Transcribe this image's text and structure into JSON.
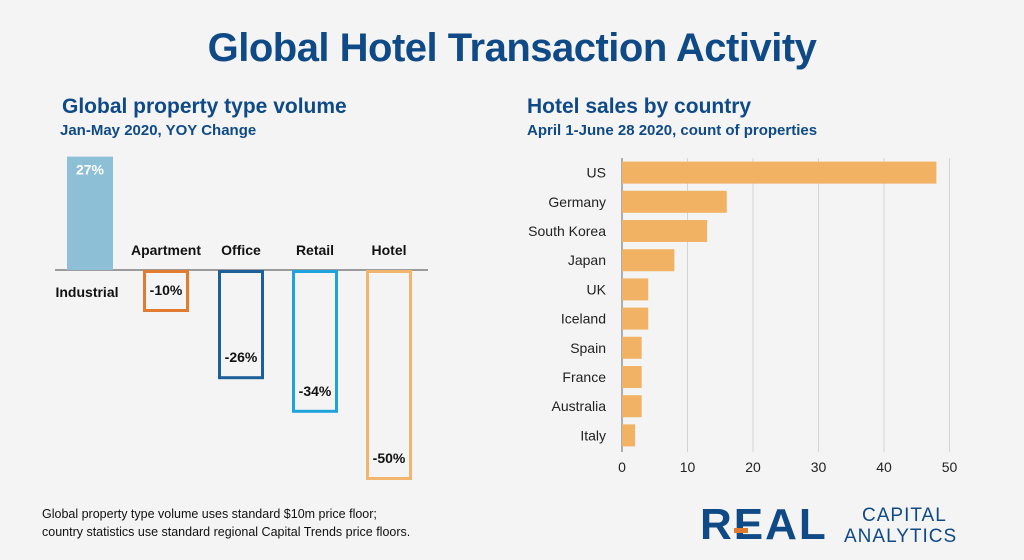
{
  "page": {
    "title": "Global Hotel Transaction Activity",
    "footnote_line1": "Global property type volume uses standard $10m price floor;",
    "footnote_line2": "country statistics use standard regional Capital Trends price floors.",
    "logo_text_main": "REAL",
    "logo_text_line1": "CAPITAL",
    "logo_text_line2": "ANALYTICS"
  },
  "left_chart_header": {
    "title": "Global property type volume",
    "subtitle": "Jan-May 2020, YOY Change"
  },
  "right_chart_header": {
    "title": "Hotel sales by country",
    "subtitle": "April 1-June 28 2020, count of properties"
  },
  "colors": {
    "title_blue": "#0f4a86",
    "industrial": "#8dc0d6",
    "apartment": "#e07b30",
    "office": "#1d5f9a",
    "retail": "#1fa3dc",
    "hotel": "#f1b56d",
    "country_bar": "#f1b263",
    "grid": "#d4d4d4"
  },
  "chart_data": [
    {
      "type": "bar",
      "title": "Global property type volume",
      "subtitle": "Jan-May 2020, YOY Change",
      "categories": [
        "Industrial",
        "Apartment",
        "Office",
        "Retail",
        "Hotel"
      ],
      "values": [
        27,
        -10,
        -26,
        -34,
        -50
      ],
      "value_labels": [
        "27%",
        "-10%",
        "-26%",
        "-34%",
        "-50%"
      ],
      "unit": "%",
      "ylim": [
        -50,
        27
      ],
      "grid": false,
      "styles": [
        "filled",
        "outline",
        "outline",
        "outline",
        "outline"
      ]
    },
    {
      "type": "bar",
      "orientation": "horizontal",
      "title": "Hotel sales by country",
      "subtitle": "April 1-June 28 2020, count of properties",
      "categories": [
        "US",
        "Germany",
        "South Korea",
        "Japan",
        "UK",
        "Iceland",
        "Spain",
        "France",
        "Australia",
        "Italy"
      ],
      "values": [
        48,
        16,
        13,
        8,
        4,
        4,
        3,
        3,
        3,
        2
      ],
      "xlim": [
        0,
        50
      ],
      "xticks": [
        0,
        10,
        20,
        30,
        40,
        50
      ],
      "grid": true
    }
  ]
}
